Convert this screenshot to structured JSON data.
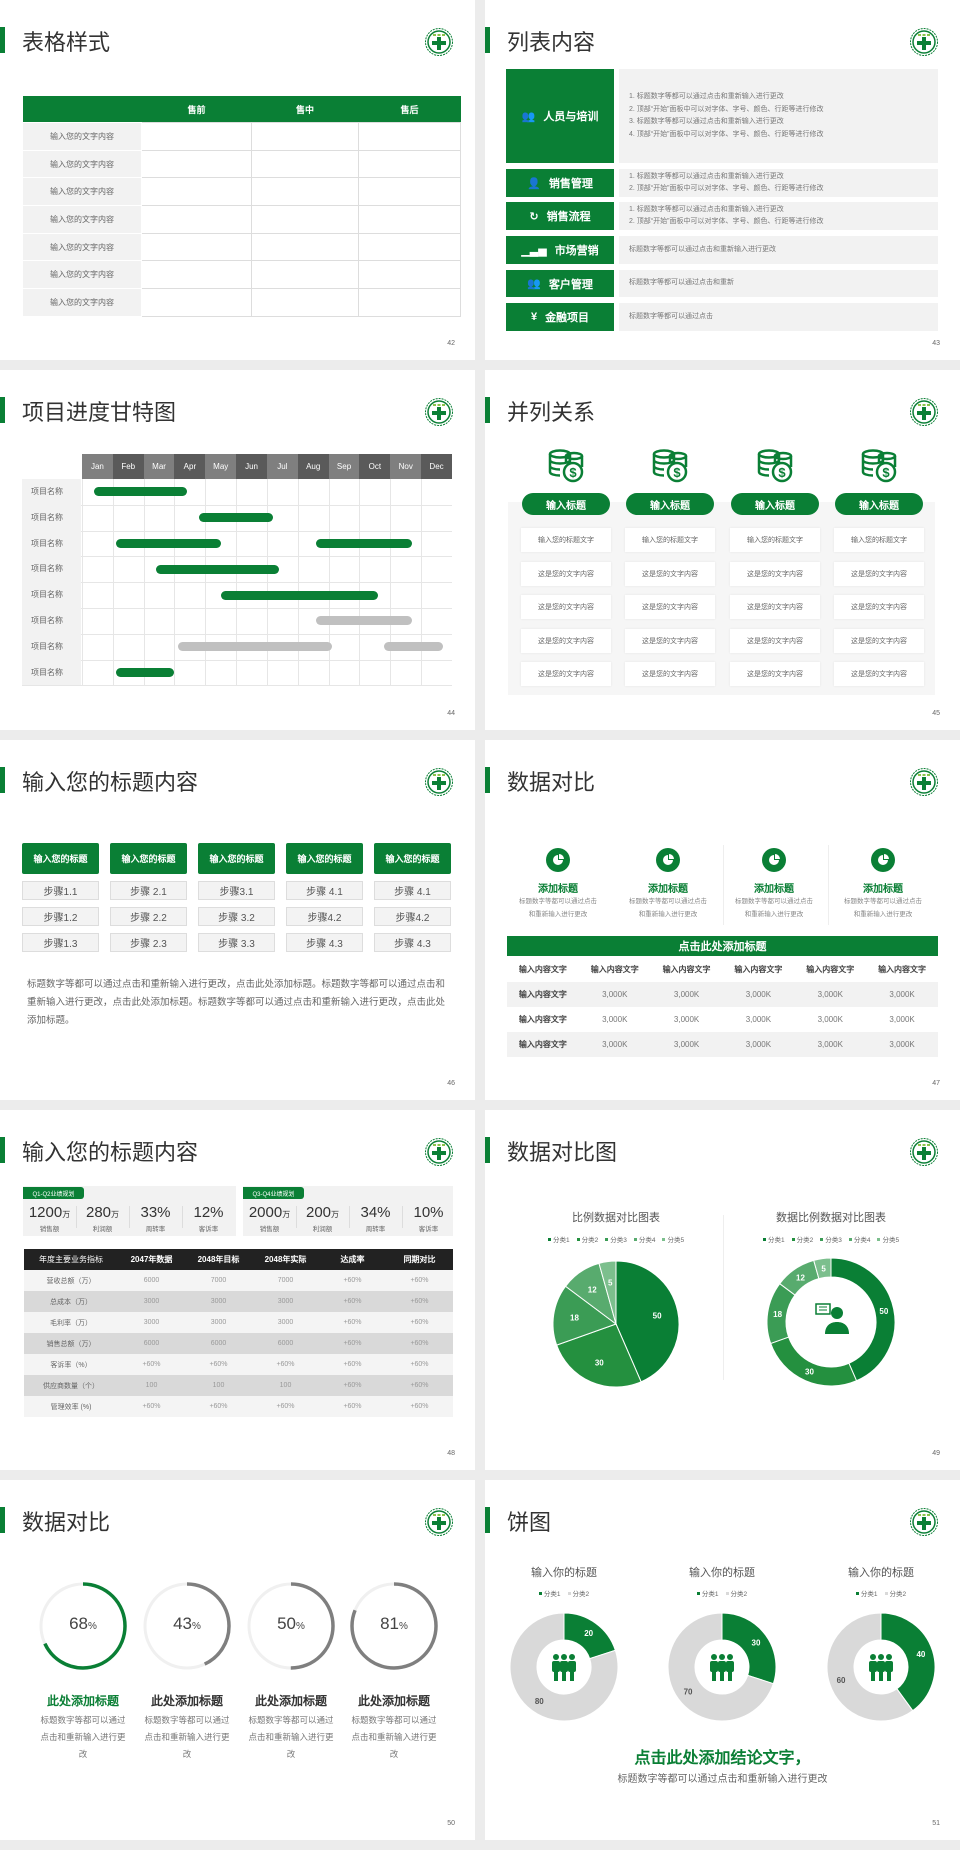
{
  "theme": {
    "green": "#0a7f35",
    "gray": "#7f7f7f",
    "light": "#d9d9d9",
    "dark": "#222222"
  },
  "table_style": {
    "title": "表格样式",
    "page": "42",
    "headers": [
      "",
      "售前",
      "售中",
      "售后"
    ],
    "rows": [
      "输入您的文字内容",
      "输入您的文字内容",
      "输入您的文字内容",
      "输入您的文字内容",
      "输入您的文字内容",
      "输入您的文字内容",
      "输入您的文字内容"
    ]
  },
  "list_content": {
    "title": "列表内容",
    "page": "43",
    "items": [
      {
        "label": "人员与培训",
        "icon": "people-training-icon",
        "lines": [
          "1.   标题数字等都可以通过点击和重新输入进行更改",
          "2.   顶部“开始”面板中可以对字体、字号、颜色、行距等进行修改",
          "3.   标题数字等都可以通过点击和重新输入进行更改",
          "4.   顶部“开始”面板中可以对字体、字号、颜色、行距等进行修改"
        ]
      },
      {
        "label": "销售管理",
        "icon": "user-gear-icon",
        "lines": [
          "1.   标题数字等都可以通过点击和重新输入进行更改",
          "2.   顶部“开始”面板中可以对字体、字号、颜色、行距等进行修改"
        ]
      },
      {
        "label": "销售流程",
        "icon": "cycle-icon",
        "lines": [
          "1.   标题数字等都可以通过点击和重新输入进行更改",
          "2.   顶部“开始”面板中可以对字体、字号、颜色、行距等进行修改"
        ]
      },
      {
        "label": "市场营销",
        "icon": "bar-chart-icon",
        "lines": [
          "标题数字等都可以通过点击和重新输入进行更改"
        ]
      },
      {
        "label": "客户管理",
        "icon": "group-icon",
        "lines": [
          "标题数字等都可以通过点击和重新"
        ]
      },
      {
        "label": "金融项目",
        "icon": "money-hand-icon",
        "lines": [
          "标题数字等都可以通过点击"
        ]
      }
    ]
  },
  "gantt": {
    "title": "项目进度甘特图",
    "page": "44"
  },
  "parallel": {
    "title": "并列关系",
    "page": "45",
    "columns": [
      {
        "icon": "coins-dollar-icon",
        "heading": "输入标题",
        "cells": [
          "输入您的标题文字",
          "这是您的文字内容",
          "这是您的文字内容",
          "这是您的文字内容",
          "这是您的文字内容"
        ]
      },
      {
        "icon": "coins-dollar-icon",
        "heading": "输入标题",
        "cells": [
          "输入您的标题文字",
          "这是您的文字内容",
          "这是您的文字内容",
          "这是您的文字内容",
          "这是您的文字内容"
        ]
      },
      {
        "icon": "coins-dollar-icon",
        "heading": "输入标题",
        "cells": [
          "输入您的标题文字",
          "这是您的文字内容",
          "这是您的文字内容",
          "这是您的文字内容",
          "这是您的文字内容"
        ]
      },
      {
        "icon": "coins-dollar-icon",
        "heading": "输入标题",
        "cells": [
          "输入您的标题文字",
          "这是您的文字内容",
          "这是您的文字内容",
          "这是您的文字内容",
          "这是您的文字内容"
        ]
      }
    ]
  },
  "steps": {
    "title": "输入您的标题内容",
    "page": "46",
    "columns": [
      {
        "heading": "输入您的标题",
        "steps": [
          "步骤1.1",
          "步骤1.2",
          "步骤1.3"
        ]
      },
      {
        "heading": "输入您的标题",
        "steps": [
          "步骤 2.1",
          "步骤 2.2",
          "步骤 2.3"
        ]
      },
      {
        "heading": "输入您的标题",
        "steps": [
          "步骤3.1",
          "步骤 3.2",
          "步骤 3.3"
        ]
      },
      {
        "heading": "输入您的标题",
        "steps": [
          "步骤 4.1",
          "步骤4.2",
          "步骤 4.3"
        ]
      },
      {
        "heading": "输入您的标题",
        "steps": [
          "步骤 4.1",
          "步骤4.2",
          "步骤 4.3"
        ]
      }
    ],
    "paragraph": "标题数字等都可以通过点击和重新输入进行更改，点击此处添加标题。标题数字等都可以通过点击和重新输入进行更改，点击此处添加标题。标题数字等都可以通过点击和重新输入进行更改，点击此处添加标题。"
  },
  "compare": {
    "title": "数据对比",
    "page": "47",
    "features": [
      {
        "icon": "pie-icon",
        "heading": "添加标题",
        "text": "标题数字等都可以通过点击和重新输入进行更改"
      },
      {
        "icon": "pie-icon",
        "heading": "添加标题",
        "text": "标题数字等都可以通过点击和重新输入进行更改"
      },
      {
        "icon": "pie-icon",
        "heading": "添加标题",
        "text": "标题数字等都可以通过点击和重新输入进行更改"
      },
      {
        "icon": "pie-icon",
        "heading": "添加标题",
        "text": "标题数字等都可以通过点击和重新输入进行更改"
      }
    ],
    "table_title": "点击此处添加标题",
    "header": [
      "输入内容文字",
      "输入内容文字",
      "输入内容文字",
      "输入内容文字",
      "输入内容文字",
      "输入内容文字"
    ],
    "rows": [
      [
        "输入内容文字",
        "3,000K",
        "3,000K",
        "3,000K",
        "3,000K",
        "3,000K"
      ],
      [
        "输入内容文字",
        "3,000K",
        "3,000K",
        "3,000K",
        "3,000K",
        "3,000K"
      ],
      [
        "输入内容文字",
        "3,000K",
        "3,000K",
        "3,000K",
        "3,000K",
        "3,000K"
      ]
    ]
  },
  "kpi": {
    "title": "输入您的标题内容",
    "page": "48",
    "panels": [
      {
        "tag": "Q1-Q2业绩规划",
        "metrics": [
          {
            "value": "1200",
            "unit": "万",
            "label": "销售额"
          },
          {
            "value": "280",
            "unit": "万",
            "label": "利润额"
          },
          {
            "value": "33%",
            "unit": "",
            "label": "周转率"
          },
          {
            "value": "12%",
            "unit": "",
            "label": "客诉率"
          }
        ]
      },
      {
        "tag": "Q3-Q4业绩规划",
        "metrics": [
          {
            "value": "2000",
            "unit": "万",
            "label": "销售额"
          },
          {
            "value": "200",
            "unit": "万",
            "label": "利润额"
          },
          {
            "value": "34%",
            "unit": "",
            "label": "周转率"
          },
          {
            "value": "10%",
            "unit": "",
            "label": "客诉率"
          }
        ]
      }
    ],
    "header": [
      "年度主要业务指标",
      "2047年数据",
      "2048年目标",
      "2048年实际",
      "达成率",
      "同期对比"
    ],
    "rows": [
      [
        "营收总额（万）",
        "6000",
        "7000",
        "7000",
        "+60%",
        "+60%"
      ],
      [
        "总成本（万）",
        "3000",
        "3000",
        "3000",
        "+60%",
        "+60%"
      ],
      [
        "毛利率（万）",
        "3000",
        "3000",
        "3000",
        "+60%",
        "+60%"
      ],
      [
        "销售总额（万）",
        "6000",
        "6000",
        "6000",
        "+60%",
        "+60%"
      ],
      [
        "客诉率（%）",
        "+60%",
        "+60%",
        "+60%",
        "+60%",
        "+60%"
      ],
      [
        "供应商数量（个）",
        "100",
        "100",
        "100",
        "+60%",
        "+60%"
      ],
      [
        "管理效率 (%)",
        "+60%",
        "+60%",
        "+60%",
        "+60%",
        "+60%"
      ]
    ]
  },
  "pie_compare": {
    "title": "数据对比图",
    "page": "49",
    "center_icon": "consultant-icon"
  },
  "rings": {
    "title": "数据对比",
    "page": "50",
    "items": [
      {
        "value": "68",
        "unit": "%",
        "heading": "此处添加标题",
        "text": "标题数字等都可以通过点击和重新输入进行更改",
        "color": "#0a7f35"
      },
      {
        "value": "43",
        "unit": "%",
        "heading": "此处添加标题",
        "text": "标题数字等都可以通过点击和重新输入进行更改",
        "color": "#7f7f7f"
      },
      {
        "value": "50",
        "unit": "%",
        "heading": "此处添加标题",
        "text": "标题数字等都可以通过点击和重新输入进行更改",
        "color": "#7f7f7f"
      },
      {
        "value": "81",
        "unit": "%",
        "heading": "此处添加标题",
        "text": "标题数字等都可以通过点击和重新输入进行更改",
        "color": "#7f7f7f"
      }
    ]
  },
  "pies": {
    "title": "饼图",
    "page": "51",
    "center_icon": "team-icon",
    "conclusion": "点击此处添加结论文字，",
    "subtext": "标题数字等都可以通过点击和重新输入进行更改"
  },
  "chart_data": [
    {
      "type": "gantt",
      "categories": [
        "Jan",
        "Feb",
        "Mar",
        "Apr",
        "May",
        "Jun",
        "Jul",
        "Aug",
        "Sep",
        "Oct",
        "Nov",
        "Dec"
      ],
      "rows": [
        {
          "label": "项目名称",
          "bars": [
            {
              "start": 0.4,
              "end": 3.4,
              "color": "green"
            }
          ]
        },
        {
          "label": "项目名称",
          "bars": [
            {
              "start": 3.8,
              "end": 6.2,
              "color": "green"
            }
          ]
        },
        {
          "label": "项目名称",
          "bars": [
            {
              "start": 1.1,
              "end": 4.5,
              "color": "green"
            },
            {
              "start": 7.6,
              "end": 10.7,
              "color": "green"
            }
          ]
        },
        {
          "label": "项目名称",
          "bars": [
            {
              "start": 2.4,
              "end": 6.4,
              "color": "green"
            }
          ]
        },
        {
          "label": "项目名称",
          "bars": [
            {
              "start": 4.5,
              "end": 9.6,
              "color": "green"
            }
          ]
        },
        {
          "label": "项目名称",
          "bars": [
            {
              "start": 7.6,
              "end": 10.7,
              "color": "gray"
            }
          ]
        },
        {
          "label": "项目名称",
          "bars": [
            {
              "start": 3.1,
              "end": 8.1,
              "color": "gray"
            },
            {
              "start": 9.8,
              "end": 11.7,
              "color": "gray"
            }
          ]
        },
        {
          "label": "项目名称",
          "bars": [
            {
              "start": 1.1,
              "end": 3.0,
              "color": "green"
            }
          ]
        }
      ]
    },
    {
      "type": "pie",
      "title": "比例数据对比图表",
      "categories": [
        "分类1",
        "分类2",
        "分类3",
        "分类4",
        "分类5"
      ],
      "values": [
        50,
        30,
        18,
        12,
        5
      ],
      "colors": [
        "#0a7f35",
        "#24903f",
        "#3b9c55",
        "#58ab6e",
        "#7cbf8d"
      ],
      "legend": "top"
    },
    {
      "type": "donut",
      "title": "数据比例数据对比图表",
      "categories": [
        "分类1",
        "分类2",
        "分类3",
        "分类4",
        "分类5"
      ],
      "values": [
        50,
        30,
        18,
        12,
        5
      ],
      "colors": [
        "#0a7f35",
        "#24903f",
        "#3b9c55",
        "#58ab6e",
        "#7cbf8d"
      ],
      "legend": "top"
    },
    {
      "type": "donut",
      "title": "输入你的标题",
      "categories": [
        "分类1",
        "分类2"
      ],
      "values": [
        20,
        80
      ],
      "colors": [
        "#0a7f35",
        "#d9d9d9"
      ],
      "legend": "top"
    },
    {
      "type": "donut",
      "title": "输入你的标题",
      "categories": [
        "分类1",
        "分类2"
      ],
      "values": [
        30,
        70
      ],
      "colors": [
        "#0a7f35",
        "#d9d9d9"
      ],
      "legend": "top"
    },
    {
      "type": "donut",
      "title": "输入你的标题",
      "categories": [
        "分类1",
        "分类2"
      ],
      "values": [
        40,
        60
      ],
      "colors": [
        "#0a7f35",
        "#d9d9d9"
      ],
      "legend": "top"
    }
  ]
}
